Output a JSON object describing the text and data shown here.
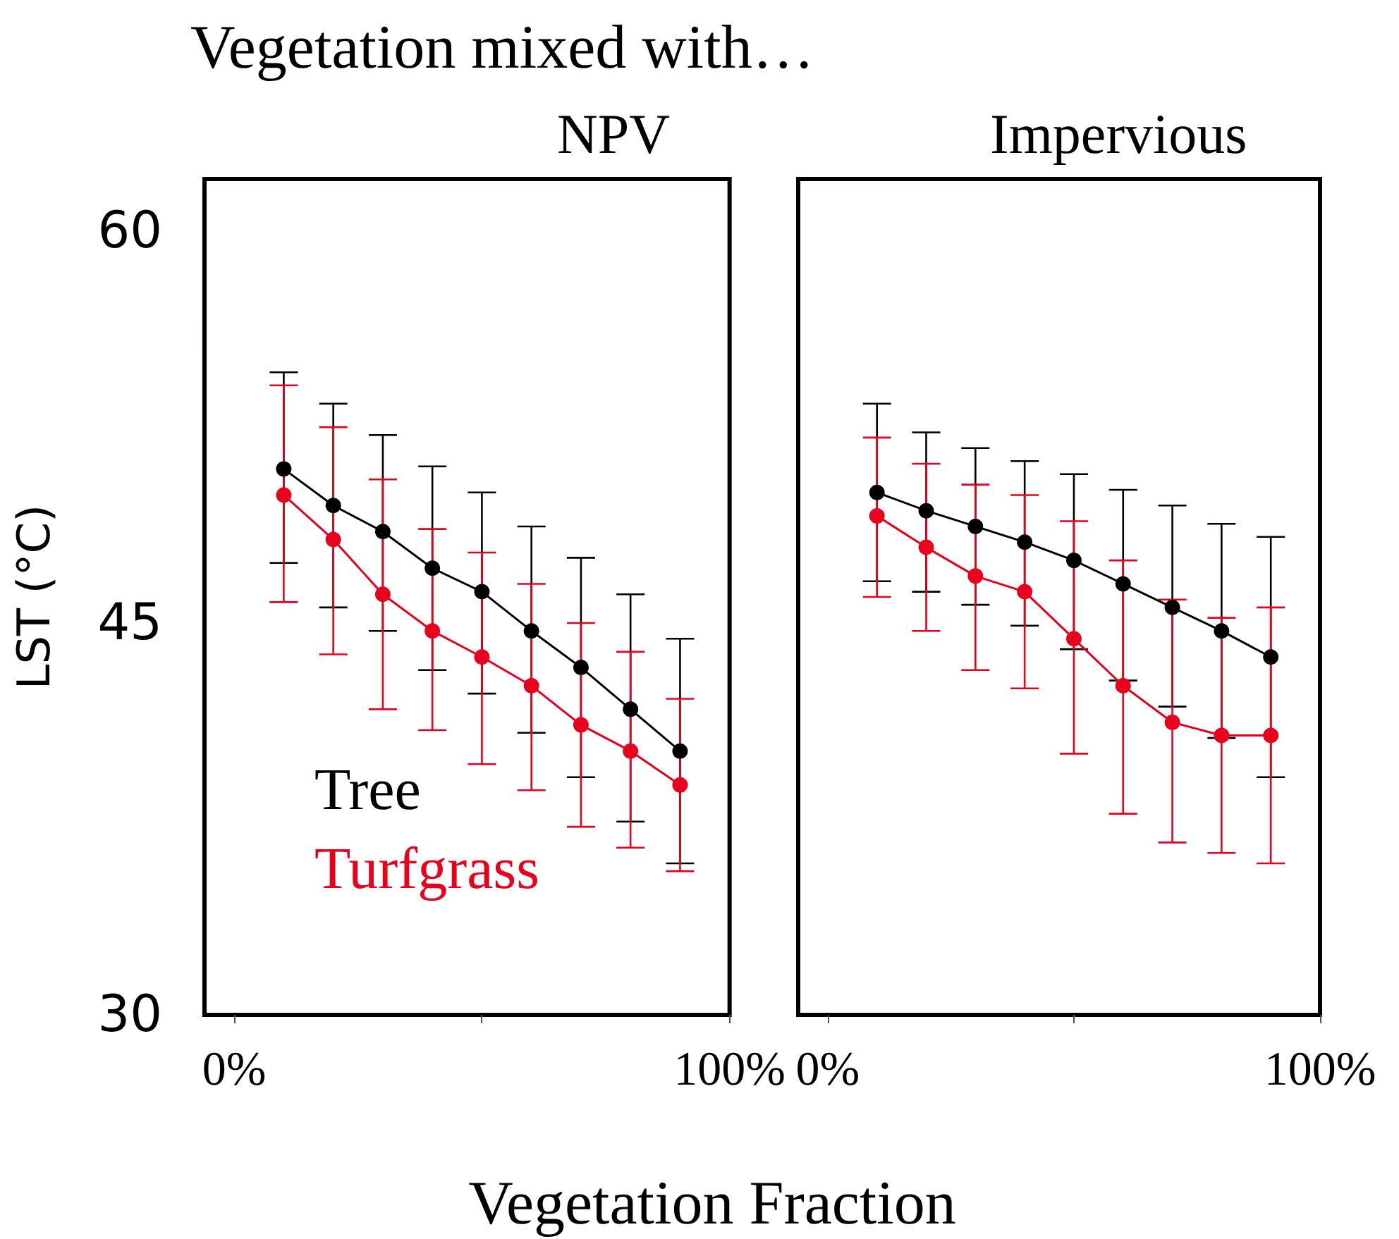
{
  "chart_data": [
    {
      "type": "line",
      "title": "Vegetation mixed with…",
      "subtitle": "NPV",
      "xlabel": "Vegetation Fraction",
      "ylabel": "LST (°C)",
      "x": [
        10,
        20,
        30,
        40,
        50,
        60,
        70,
        80,
        90
      ],
      "xlim": [
        -6,
        100
      ],
      "xticks": [
        {
          "value": 0,
          "label": "0%"
        },
        {
          "value": 50,
          "label": null
        },
        {
          "value": 100,
          "label": "100%"
        }
      ],
      "ylim": [
        30,
        62
      ],
      "yticks": [
        30,
        45,
        60
      ],
      "grid": false,
      "legend": "bottom left",
      "marker": "circle",
      "series": [
        {
          "name": "Tree",
          "color": "#000000",
          "values": [
            50.9,
            49.5,
            48.5,
            47.1,
            46.2,
            44.7,
            43.3,
            41.7,
            40.1
          ],
          "errors": [
            [
              47.3,
              54.6
            ],
            [
              45.6,
              53.4
            ],
            [
              44.7,
              52.2
            ],
            [
              43.2,
              51.0
            ],
            [
              42.3,
              50.0
            ],
            [
              40.8,
              48.7
            ],
            [
              39.1,
              47.5
            ],
            [
              37.4,
              46.1
            ],
            [
              35.8,
              44.4
            ]
          ]
        },
        {
          "name": "Turfgrass",
          "color": "#e8001c",
          "values": [
            49.9,
            48.2,
            46.1,
            44.7,
            43.7,
            42.6,
            41.1,
            40.1,
            38.8
          ],
          "errors": [
            [
              45.8,
              54.1
            ],
            [
              43.8,
              52.5
            ],
            [
              41.7,
              50.5
            ],
            [
              40.9,
              48.6
            ],
            [
              39.6,
              47.7
            ],
            [
              38.6,
              46.5
            ],
            [
              37.2,
              45.0
            ],
            [
              36.4,
              43.9
            ],
            [
              35.5,
              42.1
            ]
          ]
        }
      ]
    },
    {
      "type": "line",
      "title": "Impervious",
      "x": [
        10,
        20,
        30,
        40,
        50,
        60,
        70,
        80,
        90
      ],
      "xlim": [
        -6,
        100
      ],
      "xticks": [
        {
          "value": 0,
          "label": "0%"
        },
        {
          "value": 50,
          "label": null
        },
        {
          "value": 100,
          "label": "100%"
        }
      ],
      "ylim": [
        30,
        62
      ],
      "yticks": [
        30,
        45,
        60
      ],
      "tick_labels": "x",
      "grid": false,
      "marker": "circle",
      "series": [
        {
          "color": "#000000",
          "values": [
            50.0,
            49.3,
            48.7,
            48.1,
            47.4,
            46.5,
            45.6,
            44.7,
            43.7
          ],
          "errors": [
            [
              46.6,
              53.4
            ],
            [
              46.2,
              52.3
            ],
            [
              45.7,
              51.7
            ],
            [
              44.9,
              51.2
            ],
            [
              44.0,
              50.7
            ],
            [
              42.8,
              50.1
            ],
            [
              41.8,
              49.5
            ],
            [
              40.6,
              48.8
            ],
            [
              39.1,
              48.3
            ]
          ]
        },
        {
          "color": "#e8001c",
          "values": [
            49.1,
            47.9,
            46.8,
            46.2,
            44.4,
            42.6,
            41.2,
            40.7,
            40.7
          ],
          "errors": [
            [
              46.0,
              52.1
            ],
            [
              44.7,
              51.1
            ],
            [
              43.2,
              50.3
            ],
            [
              42.5,
              49.9
            ],
            [
              40.0,
              48.9
            ],
            [
              37.7,
              47.4
            ],
            [
              36.6,
              45.9
            ],
            [
              36.2,
              45.2
            ],
            [
              35.8,
              45.6
            ]
          ]
        }
      ]
    }
  ]
}
